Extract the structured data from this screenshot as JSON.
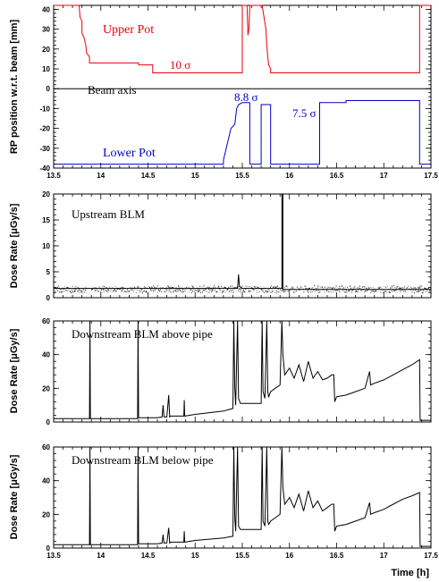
{
  "colors": {
    "upper": "#e8000b",
    "lower": "#0000cc",
    "blm": "#000000",
    "axis": "#000000"
  },
  "xlabel": "Time [h]",
  "chart_data": [
    {
      "type": "line",
      "ylabel": "RP position w.r.t. beam [mm]",
      "xlim": [
        13.5,
        17.5
      ],
      "ylim": [
        -40,
        42
      ],
      "xticks": [
        "13.5",
        "14",
        "14.5",
        "15",
        "15.5",
        "16",
        "16.5",
        "17",
        "17.5"
      ],
      "yticks": [
        "-40",
        "-30",
        "-20",
        "-10",
        "0",
        "10",
        "20",
        "30",
        "40"
      ],
      "annotations": {
        "upper_pot": "Upper Pot",
        "lower_pot": "Lower Pot",
        "beam_axis": "Beam axis",
        "sigma_10": "10 σ",
        "sigma_88": "8.8 σ",
        "sigma_75": "7.5 σ"
      },
      "series": [
        {
          "name": "Upper Pot",
          "color_key": "upper",
          "x": [
            13.5,
            13.77,
            13.78,
            13.8,
            13.8,
            13.82,
            13.84,
            13.85,
            13.88,
            13.88,
            14.4,
            14.4,
            14.55,
            14.55,
            15.45,
            15.45,
            15.5,
            15.5,
            15.55,
            15.56,
            15.57,
            15.58,
            15.59,
            15.59,
            15.63,
            15.63,
            15.71,
            15.71,
            15.75,
            15.76,
            15.77,
            15.78,
            15.8,
            15.8,
            17.38,
            17.38,
            17.5
          ],
          "y": [
            42,
            42,
            36,
            34,
            28,
            26,
            22,
            18,
            16,
            13,
            13,
            12,
            12,
            8,
            8,
            8,
            8,
            42,
            42,
            27,
            30,
            42,
            42,
            42,
            42,
            42,
            42,
            42,
            30,
            22,
            16,
            12,
            10,
            8,
            8,
            42,
            42
          ]
        },
        {
          "name": "Lower Pot",
          "color_key": "lower",
          "x": [
            13.5,
            15.3,
            15.3,
            15.38,
            15.42,
            15.44,
            15.46,
            15.5,
            15.55,
            15.58,
            15.58,
            15.7,
            15.7,
            15.72,
            15.72,
            15.8,
            15.8,
            16.32,
            16.32,
            16.6,
            16.6,
            17.38,
            17.38,
            17.5
          ],
          "y": [
            -38,
            -38,
            -36,
            -20,
            -18,
            -10,
            -8,
            -7,
            -7,
            -7,
            -38,
            -38,
            -8,
            -8,
            -8,
            -8,
            -38,
            -38,
            -7,
            -7,
            -6,
            -6,
            -38,
            -38
          ]
        }
      ]
    },
    {
      "type": "line",
      "ylabel": "Dose Rate [μGy/s]",
      "xlim": [
        13.5,
        17.5
      ],
      "ylim": [
        0,
        20
      ],
      "yticks": [
        "0",
        "5",
        "10",
        "15",
        "20"
      ],
      "label": "Upstream BLM",
      "series": [
        {
          "color_key": "blm",
          "x": [
            13.5,
            15.45,
            15.46,
            15.47,
            15.5,
            15.92,
            15.92,
            15.93,
            15.93,
            17.5
          ],
          "y": [
            1.8,
            1.8,
            4.5,
            2.2,
            1.8,
            1.8,
            20,
            20,
            1.6,
            1.6
          ]
        }
      ]
    },
    {
      "type": "line",
      "ylabel": "Dose Rate [μGy/s]",
      "xlim": [
        13.5,
        17.5
      ],
      "ylim": [
        0,
        60
      ],
      "yticks": [
        "0",
        "20",
        "40",
        "60"
      ],
      "label": "Downstream BLM above pipe",
      "series": [
        {
          "color_key": "blm",
          "x": [
            13.5,
            13.88,
            13.885,
            13.89,
            14.39,
            14.395,
            14.4,
            14.5,
            14.6,
            14.65,
            14.66,
            14.67,
            14.7,
            14.72,
            14.73,
            14.74,
            14.8,
            14.88,
            14.885,
            14.89,
            15.0,
            15.3,
            15.4,
            15.41,
            15.42,
            15.43,
            15.45,
            15.46,
            15.48,
            15.5,
            15.55,
            15.6,
            15.7,
            15.71,
            15.72,
            15.74,
            15.76,
            15.77,
            15.78,
            15.8,
            15.85,
            15.9,
            15.92,
            15.93,
            15.95,
            16.0,
            16.05,
            16.1,
            16.15,
            16.2,
            16.25,
            16.3,
            16.35,
            16.4,
            16.45,
            16.47,
            16.48,
            16.5,
            16.6,
            16.7,
            16.8,
            16.85,
            16.86,
            16.9,
            17.0,
            17.1,
            17.2,
            17.3,
            17.38,
            17.385,
            17.5
          ],
          "y": [
            2,
            2,
            60,
            2,
            2,
            60,
            2.5,
            2.5,
            2.5,
            3,
            10,
            3,
            3,
            16,
            3,
            3.5,
            3.5,
            3.5,
            13,
            3.5,
            4.5,
            6.5,
            8,
            60,
            20,
            10,
            60,
            14,
            11,
            11,
            11,
            11,
            11,
            60,
            18,
            14,
            60,
            18,
            15,
            18,
            20,
            22,
            60,
            40,
            28,
            32,
            26,
            34,
            24,
            36,
            26,
            30,
            25,
            26,
            28,
            28,
            12,
            15,
            16,
            18,
            20,
            30,
            22,
            23,
            25,
            28,
            31,
            34,
            37,
            1,
            1
          ]
        }
      ]
    },
    {
      "type": "line",
      "ylabel": "Dose Rate [μGy/s]",
      "xlim": [
        13.5,
        17.5
      ],
      "ylim": [
        0,
        60
      ],
      "xticks": [
        "13.5",
        "14",
        "14.5",
        "15",
        "15.5",
        "16",
        "16.5",
        "17",
        "17.5"
      ],
      "yticks": [
        "0",
        "20",
        "40",
        "60"
      ],
      "label": "Downstream BLM below pipe",
      "series": [
        {
          "color_key": "blm",
          "x": [
            13.5,
            13.88,
            13.885,
            13.89,
            14.39,
            14.395,
            14.4,
            14.5,
            14.6,
            14.65,
            14.66,
            14.67,
            14.7,
            14.72,
            14.73,
            14.74,
            14.8,
            14.88,
            14.885,
            14.89,
            15.0,
            15.3,
            15.4,
            15.41,
            15.42,
            15.43,
            15.45,
            15.46,
            15.48,
            15.5,
            15.55,
            15.6,
            15.7,
            15.71,
            15.72,
            15.74,
            15.76,
            15.77,
            15.78,
            15.8,
            15.85,
            15.9,
            15.92,
            15.93,
            15.95,
            16.0,
            16.05,
            16.1,
            16.15,
            16.2,
            16.25,
            16.3,
            16.35,
            16.4,
            16.45,
            16.47,
            16.48,
            16.5,
            16.6,
            16.7,
            16.8,
            16.85,
            16.86,
            16.9,
            17.0,
            17.1,
            17.2,
            17.3,
            17.38,
            17.385,
            17.5
          ],
          "y": [
            2,
            2,
            60,
            2,
            2,
            60,
            2.5,
            2.5,
            2.5,
            3,
            8,
            3,
            3,
            12,
            3,
            3.5,
            3.5,
            3.5,
            10,
            3.5,
            4.5,
            6,
            7,
            60,
            18,
            10,
            60,
            13,
            11,
            11,
            11,
            11,
            11,
            60,
            16,
            13,
            60,
            16,
            14,
            16,
            18,
            20,
            60,
            36,
            26,
            30,
            24,
            32,
            22,
            34,
            24,
            28,
            22,
            24,
            26,
            26,
            10,
            13,
            14,
            16,
            18,
            27,
            20,
            21,
            23,
            26,
            29,
            31,
            33,
            1,
            1
          ]
        }
      ]
    }
  ]
}
